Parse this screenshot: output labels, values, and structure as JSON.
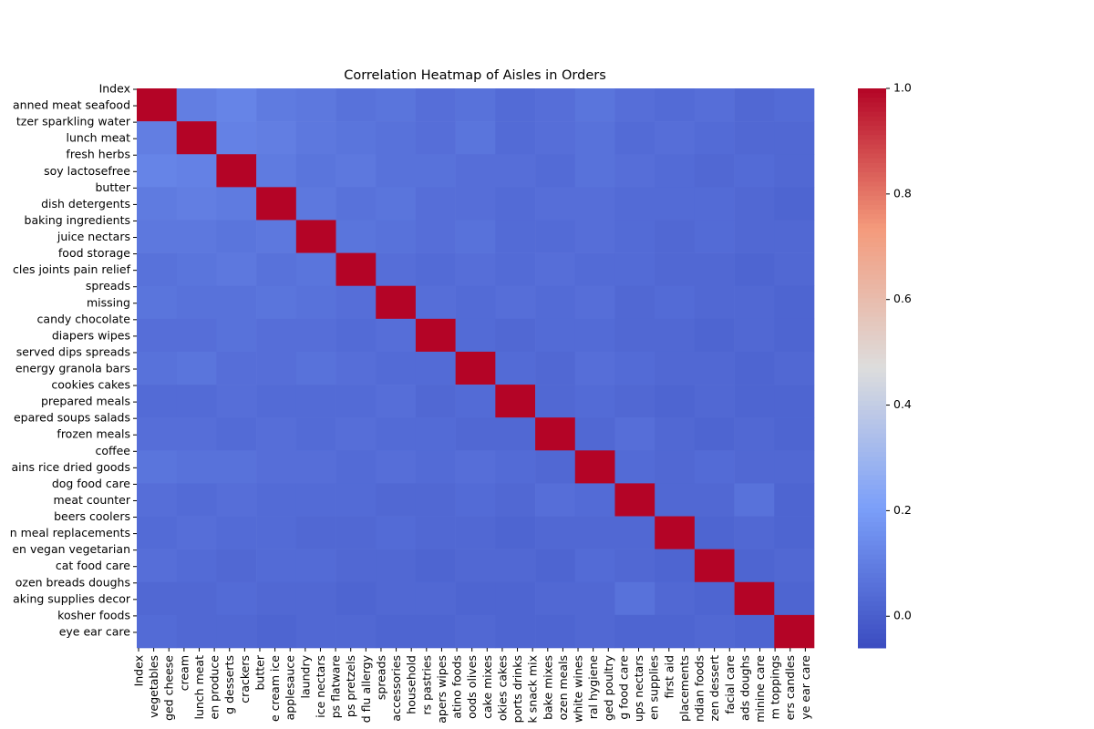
{
  "chart_data": {
    "type": "heatmap",
    "title": "Correlation Heatmap of Aisles in Orders",
    "x_labels": [
      "Index",
      "vegetables",
      "ged cheese",
      "cream",
      "lunch meat",
      "en produce",
      "g desserts",
      "crackers",
      "butter",
      "e cream ice",
      "applesauce",
      "laundry",
      "ice nectars",
      "ps flatware",
      "ps pretzels",
      "d flu allergy",
      "spreads",
      "accessories",
      "household",
      "rs pastries",
      "apers wipes",
      "atino foods",
      "oods olives",
      "cake mixes",
      "okies cakes",
      "ports drinks",
      "k snack mix",
      "bake mixes",
      "ozen meals",
      "white wines",
      "ral hygiene",
      "ged poultry",
      "g food care",
      "ups nectars",
      "en supplies",
      "first aid",
      "placements",
      "ndian foods",
      "zen dessert",
      "facial care",
      "ads doughs",
      "minine care",
      "m toppings",
      "ers candles",
      "ye ear care"
    ],
    "y_labels": [
      "Index",
      "anned meat seafood",
      "tzer sparkling water",
      "lunch meat",
      "fresh herbs",
      "soy lactosefree",
      "butter",
      "dish detergents",
      "baking ingredients",
      "juice nectars",
      "food storage",
      "cles joints pain relief",
      "spreads",
      "missing",
      "candy chocolate",
      "diapers wipes",
      "served dips spreads",
      "energy granola bars",
      "cookies cakes",
      "prepared meals",
      "epared soups salads",
      "frozen meals",
      "coffee",
      "ains rice dried goods",
      "dog food care",
      "meat counter",
      "beers coolers",
      "n meal replacements",
      "en vegan vegetarian",
      "cat food care",
      "ozen breads doughs",
      "aking supplies decor",
      "kosher foods",
      "eye ear care"
    ],
    "values": [
      [
        1.0,
        0.1,
        0.12,
        0.09,
        0.08,
        0.06,
        0.07,
        0.05,
        0.06,
        0.04,
        0.05,
        0.07,
        0.05,
        0.04,
        0.05,
        0.03,
        0.04
      ],
      [
        0.1,
        1.0,
        0.11,
        0.1,
        0.08,
        0.07,
        0.06,
        0.05,
        0.07,
        0.04,
        0.05,
        0.06,
        0.04,
        0.05,
        0.04,
        0.03,
        0.03
      ],
      [
        0.12,
        0.11,
        1.0,
        0.09,
        0.07,
        0.08,
        0.06,
        0.06,
        0.05,
        0.05,
        0.04,
        0.06,
        0.05,
        0.04,
        0.03,
        0.04,
        0.03
      ],
      [
        0.09,
        0.1,
        0.09,
        1.0,
        0.08,
        0.06,
        0.07,
        0.05,
        0.05,
        0.04,
        0.05,
        0.05,
        0.04,
        0.04,
        0.04,
        0.03,
        0.02
      ],
      [
        0.08,
        0.08,
        0.07,
        0.08,
        1.0,
        0.07,
        0.06,
        0.05,
        0.06,
        0.04,
        0.04,
        0.05,
        0.04,
        0.03,
        0.04,
        0.03,
        0.03
      ],
      [
        0.06,
        0.07,
        0.08,
        0.06,
        0.07,
        1.0,
        0.05,
        0.04,
        0.05,
        0.04,
        0.05,
        0.04,
        0.04,
        0.03,
        0.03,
        0.02,
        0.03
      ],
      [
        0.07,
        0.06,
        0.06,
        0.07,
        0.06,
        0.05,
        1.0,
        0.05,
        0.04,
        0.05,
        0.04,
        0.05,
        0.03,
        0.04,
        0.03,
        0.03,
        0.02
      ],
      [
        0.05,
        0.05,
        0.06,
        0.05,
        0.05,
        0.04,
        0.05,
        1.0,
        0.04,
        0.03,
        0.04,
        0.04,
        0.03,
        0.03,
        0.02,
        0.03,
        0.02
      ],
      [
        0.06,
        0.07,
        0.05,
        0.05,
        0.06,
        0.05,
        0.04,
        0.04,
        1.0,
        0.04,
        0.03,
        0.05,
        0.04,
        0.03,
        0.03,
        0.02,
        0.03
      ],
      [
        0.04,
        0.04,
        0.05,
        0.04,
        0.04,
        0.04,
        0.05,
        0.03,
        0.04,
        1.0,
        0.03,
        0.04,
        0.03,
        0.02,
        0.03,
        0.02,
        0.02
      ],
      [
        0.05,
        0.05,
        0.04,
        0.05,
        0.04,
        0.05,
        0.04,
        0.04,
        0.03,
        0.03,
        1.0,
        0.03,
        0.05,
        0.03,
        0.02,
        0.03,
        0.02
      ],
      [
        0.07,
        0.06,
        0.06,
        0.05,
        0.05,
        0.04,
        0.05,
        0.04,
        0.05,
        0.04,
        0.03,
        1.0,
        0.04,
        0.03,
        0.04,
        0.03,
        0.03
      ],
      [
        0.05,
        0.04,
        0.05,
        0.04,
        0.04,
        0.04,
        0.03,
        0.03,
        0.04,
        0.03,
        0.05,
        0.04,
        1.0,
        0.03,
        0.03,
        0.06,
        0.02
      ],
      [
        0.04,
        0.05,
        0.04,
        0.04,
        0.03,
        0.03,
        0.04,
        0.03,
        0.03,
        0.02,
        0.03,
        0.03,
        0.03,
        1.0,
        0.02,
        0.03,
        0.02
      ],
      [
        0.05,
        0.04,
        0.03,
        0.04,
        0.04,
        0.03,
        0.03,
        0.02,
        0.03,
        0.03,
        0.02,
        0.04,
        0.03,
        0.02,
        1.0,
        0.02,
        0.03
      ],
      [
        0.03,
        0.03,
        0.04,
        0.03,
        0.03,
        0.02,
        0.03,
        0.03,
        0.02,
        0.02,
        0.03,
        0.03,
        0.06,
        0.03,
        0.02,
        1.0,
        0.02
      ],
      [
        0.04,
        0.03,
        0.03,
        0.02,
        0.03,
        0.03,
        0.02,
        0.02,
        0.03,
        0.02,
        0.02,
        0.03,
        0.02,
        0.02,
        0.03,
        0.02,
        1.0
      ]
    ],
    "clim": [
      -0.06,
      1.0
    ],
    "cticks": [
      0.0,
      0.2,
      0.4,
      0.6,
      0.8,
      1.0
    ],
    "colormap": "coolwarm"
  }
}
